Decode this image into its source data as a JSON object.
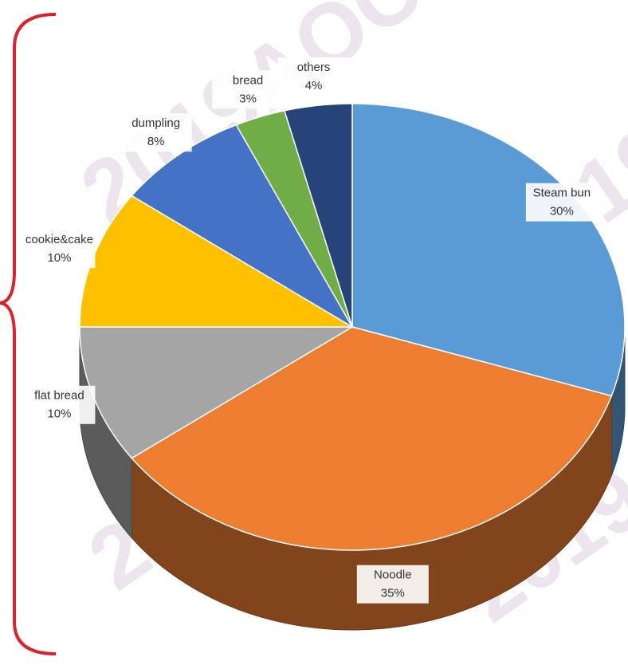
{
  "chart_data": {
    "type": "pie",
    "categories": [
      "Steam bun",
      "Noodle",
      "flat bread",
      "cookie&cake",
      "dumpling",
      "bread",
      "others"
    ],
    "values": [
      30,
      35,
      10,
      10,
      8,
      3,
      4
    ],
    "value_labels": [
      "30%",
      "35%",
      "10%",
      "10%",
      "8%",
      "3%",
      "4%"
    ],
    "colors": [
      "#5b9bd5",
      "#ed7d31",
      "#a5a5a5",
      "#ffc000",
      "#4472c4",
      "#70ad47",
      "#264478"
    ],
    "watermark": "2019AOC"
  }
}
